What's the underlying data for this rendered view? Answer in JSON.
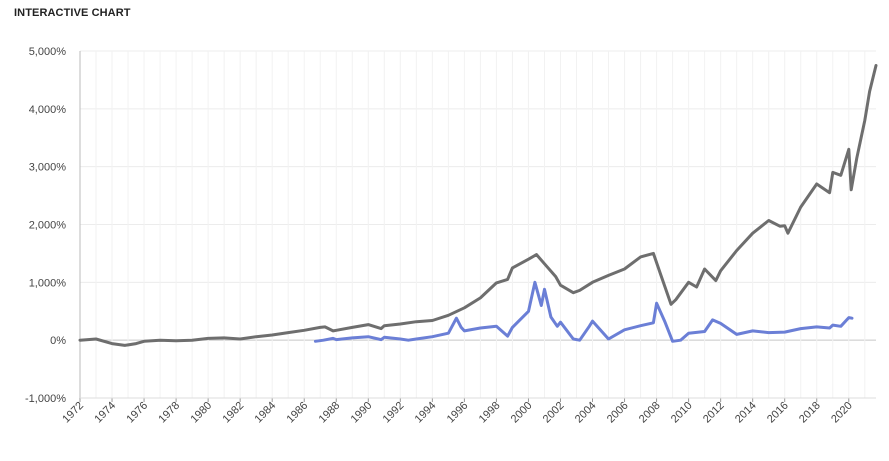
{
  "page": {
    "title": "INTERACTIVE CHART"
  },
  "chart_data": {
    "type": "line",
    "title": "INTERACTIVE CHART",
    "xlabel": "",
    "ylabel": "",
    "xlim": [
      1972,
      2021.7
    ],
    "ylim": [
      -1000,
      5000
    ],
    "y_ticks": [
      5000,
      4000,
      3000,
      2000,
      1000,
      0,
      -1000
    ],
    "y_tick_labels": [
      "5,000%",
      "4,000%",
      "3,000%",
      "2,000%",
      "1,000%",
      "0%",
      "-1,000%"
    ],
    "x_ticks": [
      1972,
      1974,
      1976,
      1978,
      1980,
      1982,
      1984,
      1986,
      1988,
      1990,
      1992,
      1994,
      1996,
      1998,
      2000,
      2002,
      2004,
      2006,
      2008,
      2010,
      2012,
      2014,
      2016,
      2018,
      2020
    ],
    "x_tick_labels": [
      "1972",
      "1974",
      "1976",
      "1978",
      "1980",
      "1982",
      "1984",
      "1986",
      "1988",
      "1990",
      "1992",
      "1994",
      "1996",
      "1998",
      "2000",
      "2002",
      "2004",
      "2006",
      "2008",
      "2010",
      "2012",
      "2014",
      "2016",
      "2018",
      "2020"
    ],
    "grid": true,
    "legend": "none",
    "series": [
      {
        "color": "#6e6e6e",
        "x": [
          1972,
          1973,
          1974,
          1974.8,
          1975.5,
          1976,
          1977,
          1978,
          1979,
          1980,
          1981,
          1982,
          1983,
          1984,
          1985,
          1986,
          1987,
          1987.3,
          1987.8,
          1988,
          1989,
          1990,
          1990.8,
          1991,
          1992,
          1993,
          1994,
          1995,
          1996,
          1997,
          1998,
          1998.7,
          1999,
          2000,
          2000.5,
          2001,
          2001.7,
          2002,
          2002.8,
          2003.2,
          2004,
          2005,
          2006,
          2007,
          2007.8,
          2008.3,
          2008.9,
          2009.2,
          2010,
          2010.5,
          2011,
          2011.7,
          2012,
          2013,
          2014,
          2015,
          2015.7,
          2016,
          2016.2,
          2017,
          2018,
          2018.8,
          2019,
          2019.5,
          2020,
          2020.15,
          2020.5,
          2021,
          2021.3,
          2021.7
        ],
        "y": [
          0,
          20,
          -60,
          -90,
          -60,
          -20,
          0,
          -10,
          0,
          30,
          40,
          20,
          60,
          90,
          130,
          170,
          220,
          230,
          160,
          170,
          220,
          270,
          200,
          250,
          280,
          320,
          340,
          430,
          560,
          730,
          990,
          1050,
          1250,
          1400,
          1480,
          1320,
          1100,
          950,
          820,
          860,
          1000,
          1120,
          1230,
          1440,
          1500,
          1100,
          620,
          700,
          1000,
          920,
          1230,
          1030,
          1200,
          1550,
          1850,
          2070,
          1970,
          1980,
          1850,
          2300,
          2700,
          2550,
          2900,
          2850,
          3300,
          2600,
          3150,
          3800,
          4300,
          4750
        ]
      },
      {
        "color": "#6b7fd6",
        "x": [
          1986.7,
          1987.2,
          1987.8,
          1988,
          1989,
          1990,
          1990.8,
          1991,
          1992,
          1992.5,
          1993,
          1994,
          1995,
          1995.5,
          1995.8,
          1996,
          1997,
          1998,
          1998.7,
          1999,
          2000,
          2000.4,
          2000.8,
          2001,
          2001.4,
          2001.8,
          2002,
          2002.8,
          2003.2,
          2003.8,
          2004,
          2005,
          2006,
          2007,
          2007.8,
          2008,
          2008.5,
          2009,
          2009.5,
          2010,
          2011,
          2011.5,
          2012,
          2013,
          2014,
          2015,
          2016,
          2017,
          2018,
          2018.8,
          2019,
          2019.5,
          2020,
          2020.2
        ],
        "y": [
          -20,
          0,
          30,
          10,
          40,
          60,
          10,
          50,
          20,
          0,
          20,
          60,
          120,
          380,
          220,
          160,
          210,
          240,
          70,
          220,
          500,
          1000,
          600,
          880,
          400,
          240,
          310,
          20,
          0,
          240,
          330,
          20,
          180,
          250,
          300,
          640,
          330,
          -20,
          0,
          120,
          150,
          350,
          290,
          100,
          160,
          130,
          140,
          200,
          230,
          210,
          260,
          240,
          390,
          380
        ]
      }
    ]
  }
}
